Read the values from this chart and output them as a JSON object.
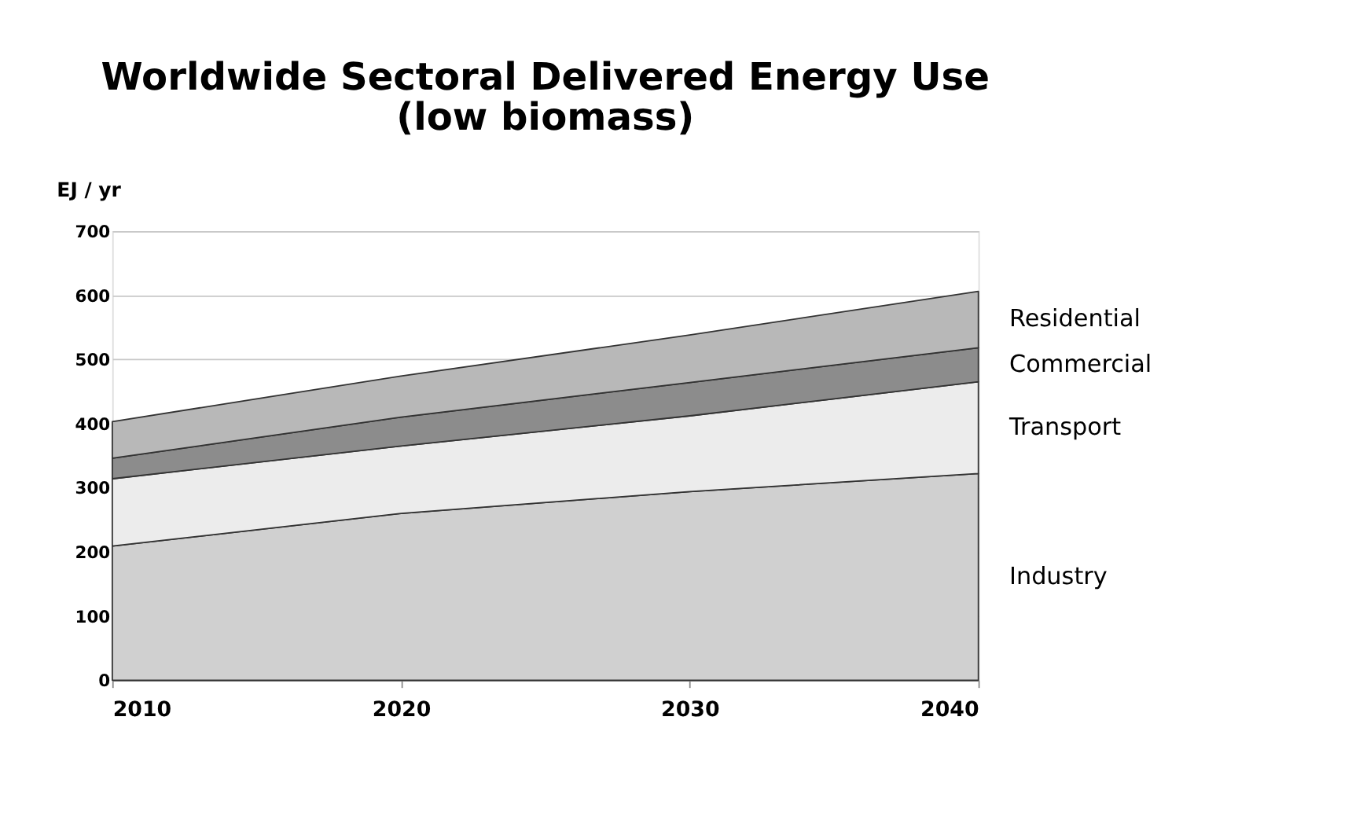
{
  "chart_data": {
    "type": "area",
    "title": [
      "Worldwide Sectoral Delivered Energy Use",
      "(low biomass)"
    ],
    "ylabel": "EJ / yr",
    "x": [
      2010,
      2020,
      2030,
      2040
    ],
    "stacked": true,
    "series": [
      {
        "name": "Industry",
        "color": "#d0d0d0",
        "values": [
          209,
          260,
          294,
          322
        ]
      },
      {
        "name": "Transport",
        "color": "#ececec",
        "values": [
          105,
          105,
          118,
          143
        ]
      },
      {
        "name": "Commercial",
        "color": "#8c8c8c",
        "values": [
          32,
          45,
          52,
          53
        ]
      },
      {
        "name": "Residential",
        "color": "#b8b8b8",
        "values": [
          57,
          64,
          74,
          88
        ]
      }
    ],
    "xlim": [
      2010,
      2040
    ],
    "xticks": [
      2010,
      2020,
      2030,
      2040
    ],
    "ylim": [
      0,
      700
    ],
    "yticks": [
      0,
      100,
      200,
      300,
      400,
      500,
      600,
      700
    ],
    "grid": "y",
    "legend": false
  }
}
